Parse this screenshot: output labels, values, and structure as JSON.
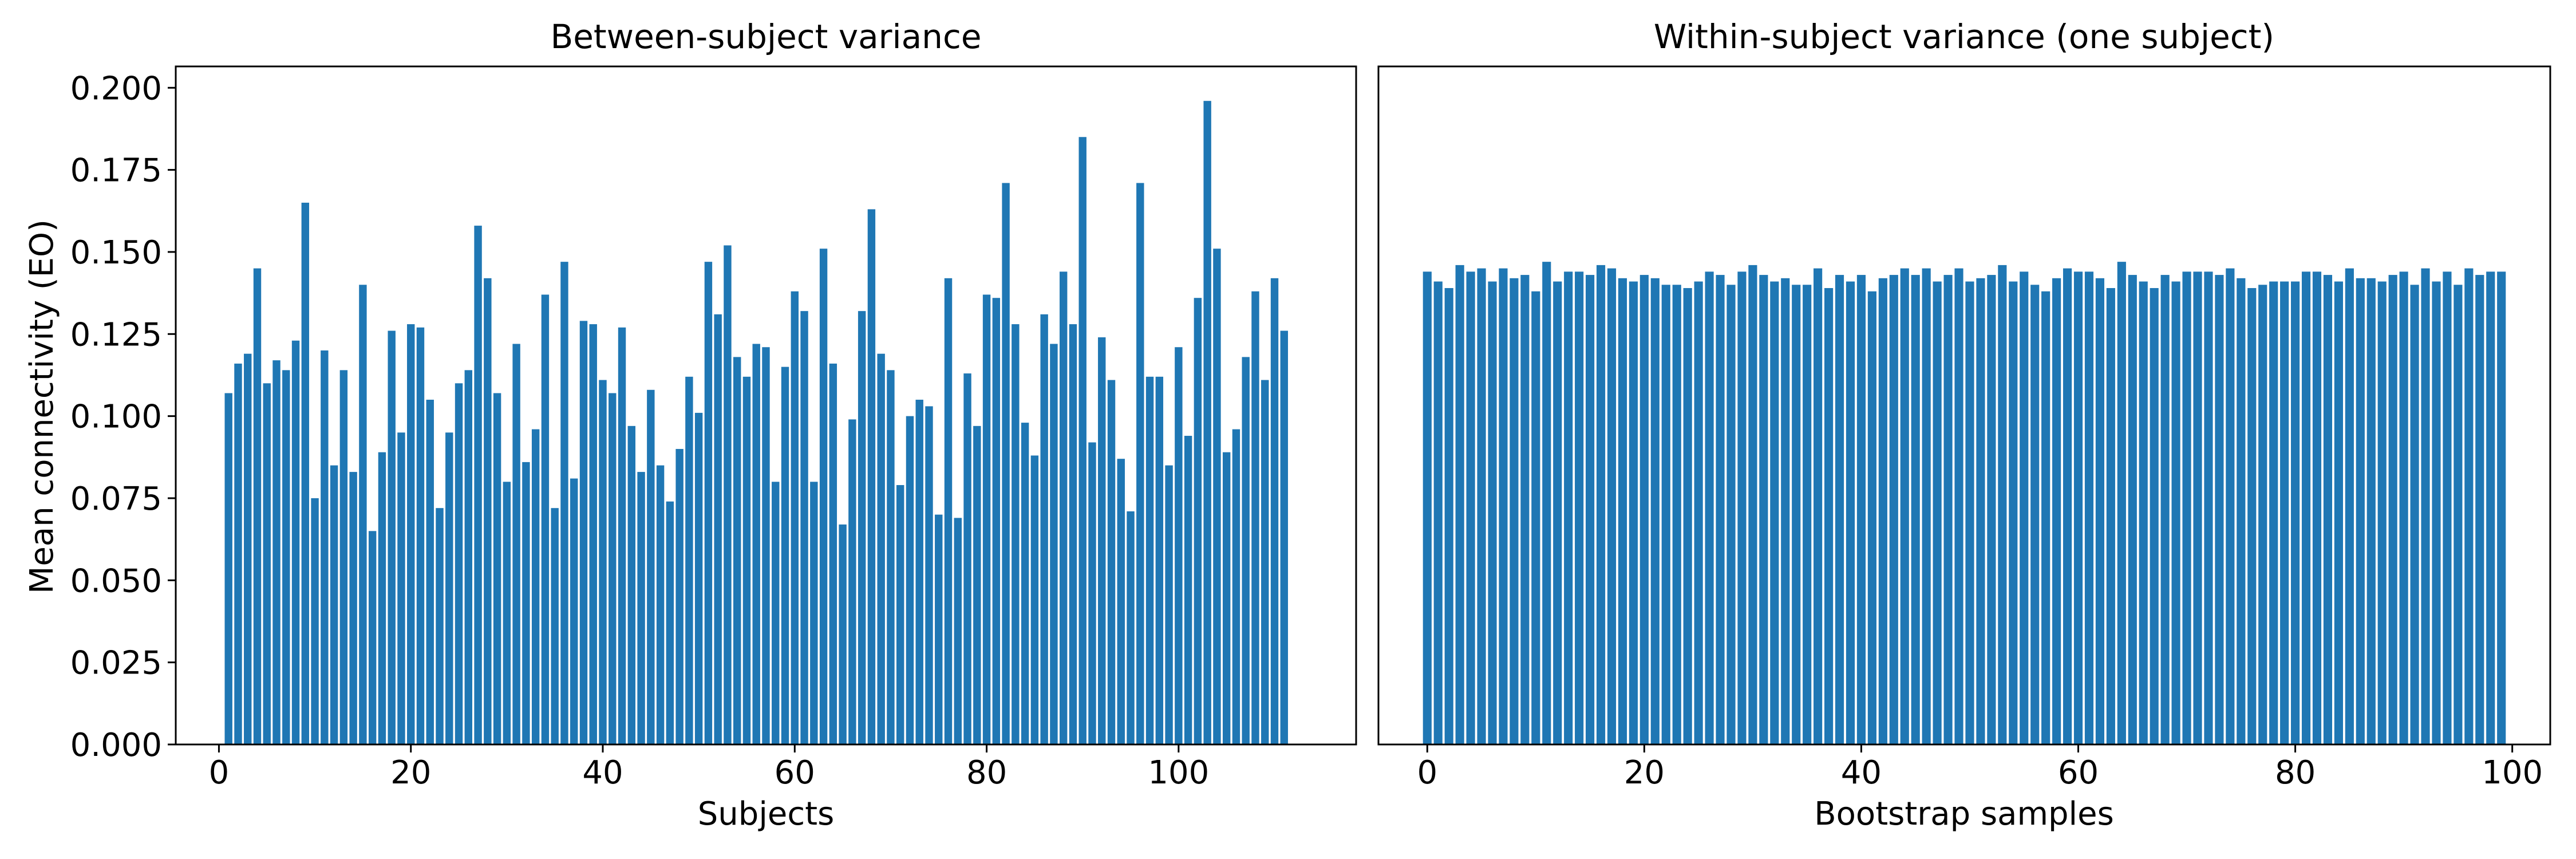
{
  "chart_data": [
    {
      "type": "bar",
      "title": "Between-subject variance",
      "xlabel": "Subjects",
      "ylabel": "Mean connectivity (EO)",
      "xlim": [
        -4.5,
        118.5
      ],
      "ylim": [
        0,
        0.2065
      ],
      "xticks": [
        0,
        20,
        40,
        60,
        80,
        100
      ],
      "xtick_labels": [
        "0",
        "20",
        "40",
        "60",
        "80",
        "100"
      ],
      "yticks": [
        0,
        0.025,
        0.05,
        0.075,
        0.1,
        0.125,
        0.15,
        0.175,
        0.2
      ],
      "ytick_labels": [
        "0.000",
        "0.025",
        "0.050",
        "0.075",
        "0.100",
        "0.125",
        "0.150",
        "0.175",
        "0.200"
      ],
      "bar_color": "#1f77b4",
      "grid": false,
      "x_start": 1,
      "values": [
        0.107,
        0.116,
        0.119,
        0.145,
        0.11,
        0.117,
        0.114,
        0.123,
        0.165,
        0.075,
        0.12,
        0.085,
        0.114,
        0.083,
        0.14,
        0.065,
        0.089,
        0.126,
        0.095,
        0.128,
        0.127,
        0.105,
        0.072,
        0.095,
        0.11,
        0.114,
        0.158,
        0.142,
        0.107,
        0.08,
        0.122,
        0.086,
        0.096,
        0.137,
        0.072,
        0.147,
        0.081,
        0.129,
        0.128,
        0.111,
        0.107,
        0.127,
        0.097,
        0.083,
        0.108,
        0.085,
        0.074,
        0.09,
        0.112,
        0.101,
        0.147,
        0.131,
        0.152,
        0.118,
        0.112,
        0.122,
        0.121,
        0.08,
        0.115,
        0.138,
        0.132,
        0.08,
        0.151,
        0.116,
        0.067,
        0.099,
        0.132,
        0.163,
        0.119,
        0.114,
        0.079,
        0.1,
        0.105,
        0.103,
        0.07,
        0.142,
        0.069,
        0.113,
        0.097,
        0.137,
        0.136,
        0.171,
        0.128,
        0.098,
        0.088,
        0.131,
        0.122,
        0.144,
        0.128,
        0.185,
        0.092,
        0.124,
        0.111,
        0.087,
        0.071,
        0.171,
        0.112,
        0.112,
        0.085,
        0.121,
        0.094,
        0.136,
        0.196,
        0.151,
        0.089,
        0.096,
        0.118,
        0.138,
        0.111,
        0.142,
        0.126
      ]
    },
    {
      "type": "bar",
      "title": "Within-subject variance (one subject)",
      "xlabel": "Bootstrap samples",
      "ylabel": "",
      "xlim": [
        -4.5,
        103.5
      ],
      "ylim": [
        0,
        0.2065
      ],
      "xticks": [
        0,
        20,
        40,
        60,
        80,
        100
      ],
      "xtick_labels": [
        "0",
        "20",
        "40",
        "60",
        "80",
        "100"
      ],
      "shared_y_axis": true,
      "bar_color": "#1f77b4",
      "grid": false,
      "x_start": 0,
      "values": [
        0.144,
        0.141,
        0.139,
        0.146,
        0.144,
        0.145,
        0.141,
        0.145,
        0.142,
        0.143,
        0.138,
        0.147,
        0.141,
        0.144,
        0.144,
        0.143,
        0.146,
        0.145,
        0.142,
        0.141,
        0.143,
        0.142,
        0.14,
        0.14,
        0.139,
        0.141,
        0.144,
        0.143,
        0.14,
        0.144,
        0.146,
        0.143,
        0.141,
        0.142,
        0.14,
        0.14,
        0.145,
        0.139,
        0.143,
        0.141,
        0.143,
        0.138,
        0.142,
        0.143,
        0.145,
        0.143,
        0.145,
        0.141,
        0.143,
        0.145,
        0.141,
        0.142,
        0.143,
        0.146,
        0.141,
        0.144,
        0.14,
        0.138,
        0.142,
        0.145,
        0.144,
        0.144,
        0.142,
        0.139,
        0.147,
        0.143,
        0.141,
        0.139,
        0.143,
        0.141,
        0.144,
        0.144,
        0.144,
        0.143,
        0.145,
        0.142,
        0.139,
        0.14,
        0.141,
        0.141,
        0.141,
        0.144,
        0.144,
        0.143,
        0.141,
        0.145,
        0.142,
        0.142,
        0.141,
        0.143,
        0.144,
        0.14,
        0.145,
        0.141,
        0.144,
        0.14,
        0.145,
        0.143,
        0.144,
        0.144
      ]
    }
  ]
}
